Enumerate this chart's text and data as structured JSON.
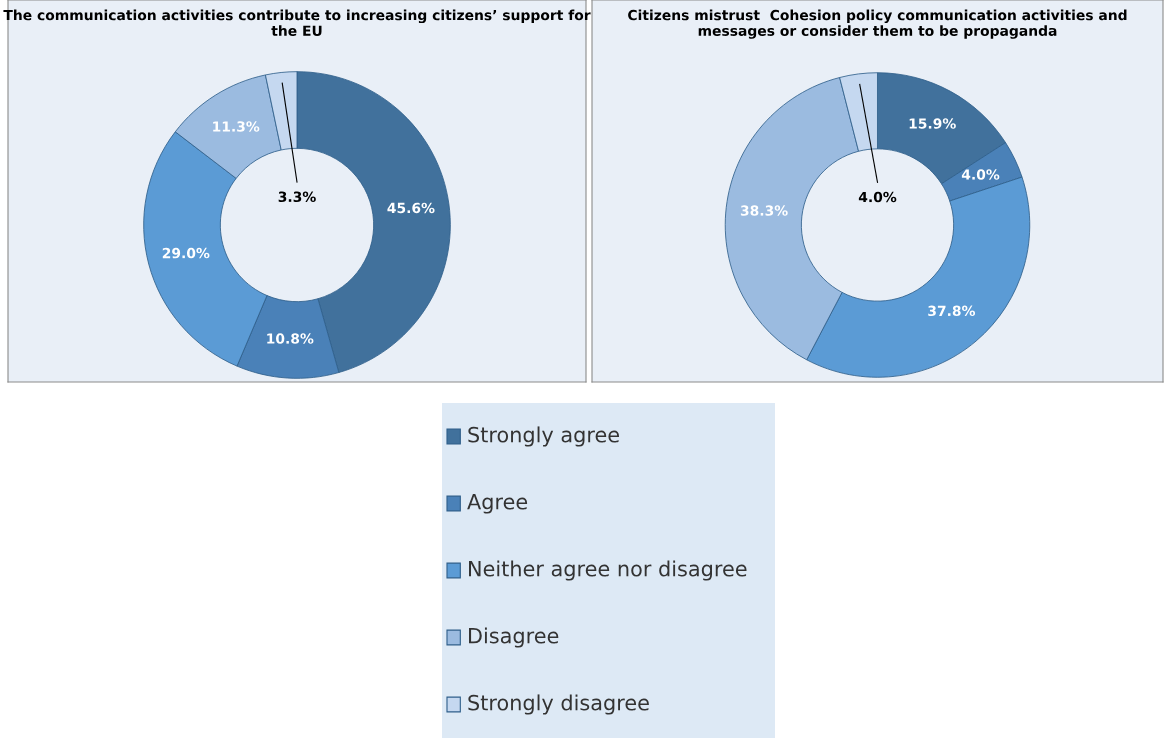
{
  "chart_data": [
    {
      "type": "donut",
      "title": "The communication activities contribute to increasing citizens’ support for the EU",
      "categories": [
        "Strongly agree",
        "Agree",
        "Neither agree nor disagree",
        "Disagree",
        "Strongly disagree"
      ],
      "values": [
        45.6,
        10.8,
        29.0,
        11.3,
        3.3
      ],
      "colors": [
        "#41719c",
        "#4a81b8",
        "#5b9bd5",
        "#9bbbe0",
        "#c5d8f0"
      ],
      "value_labels": [
        "45.6%",
        "10.8%",
        "29.0%",
        "11.3%",
        "3.3%"
      ],
      "legend": "bottom"
    },
    {
      "type": "donut",
      "title": "Citizens mistrust  Cohesion policy communication activities and messages or consider them to be propaganda",
      "categories": [
        null,
        null,
        null,
        null,
        null
      ],
      "values": [
        15.9,
        4.0,
        37.8,
        38.3,
        4.0
      ],
      "colors": [
        "#41719c",
        "#4a81b8",
        "#5b9bd5",
        "#9bbbe0",
        "#c5d8f0"
      ],
      "value_labels": [
        "15.9%",
        "4.0%",
        "37.8%",
        "38.3%",
        "4.0%"
      ]
    }
  ]
}
